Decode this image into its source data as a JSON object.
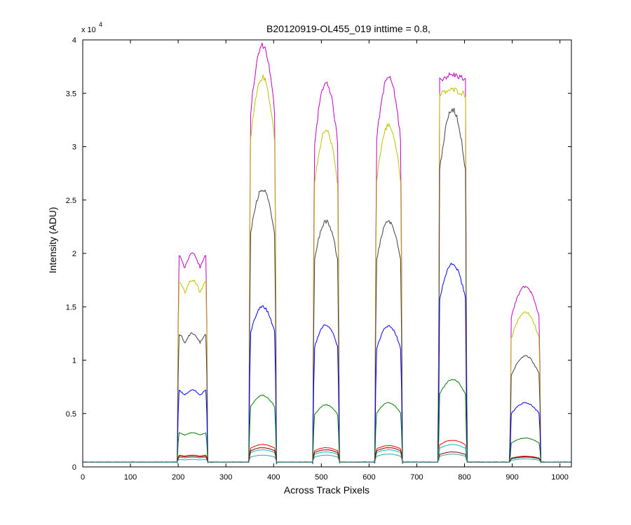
{
  "chart_data": {
    "type": "line",
    "title": "B20120919-OL455_019 inttime = 0.8,",
    "xlabel": "Across Track Pixels",
    "ylabel": "Intensity (ADU)",
    "xlim": [
      0,
      1024
    ],
    "ylim": [
      0,
      40000
    ],
    "y_multiplier_base": "x 10",
    "y_multiplier_exponent": "4",
    "xticks": [
      0,
      100,
      200,
      300,
      400,
      500,
      600,
      700,
      800,
      900,
      1000
    ],
    "xtick_labels": [
      "0",
      "100",
      "200",
      "300",
      "400",
      "500",
      "600",
      "700",
      "800",
      "900",
      "1000"
    ],
    "yticks": [
      0,
      5000,
      10000,
      15000,
      20000,
      25000,
      30000,
      35000,
      40000
    ],
    "ytick_labels": [
      "0",
      "0.5",
      "1",
      "1.5",
      "2",
      "2.5",
      "3",
      "3.5",
      "4"
    ],
    "grid": false,
    "baseline": 450,
    "blocks": [
      {
        "start": 198,
        "end": 262
      },
      {
        "start": 348,
        "end": 406
      },
      {
        "start": 482,
        "end": 538
      },
      {
        "start": 612,
        "end": 670
      },
      {
        "start": 745,
        "end": 805
      },
      {
        "start": 895,
        "end": 960
      }
    ],
    "series": [
      {
        "color": "#bf00bf",
        "values": [
          20000,
          39500,
          36000,
          36500,
          36700,
          16900
        ]
      },
      {
        "color": "#bfbf00",
        "values": [
          17500,
          36500,
          31500,
          32000,
          35300,
          14500
        ]
      },
      {
        "color": "#404040",
        "values": [
          12500,
          26000,
          23000,
          23000,
          33500,
          10400
        ]
      },
      {
        "color": "#0000ff",
        "values": [
          7200,
          15000,
          13300,
          13200,
          19000,
          6000
        ]
      },
      {
        "color": "#007f00",
        "values": [
          3200,
          6700,
          5800,
          6000,
          8200,
          2700
        ]
      },
      {
        "color": "#ff0000",
        "values": [
          1100,
          2100,
          1800,
          2000,
          2500,
          1000
        ]
      },
      {
        "color": "#00bfbf",
        "values": [
          900,
          1600,
          1400,
          1600,
          2100,
          900
        ]
      },
      {
        "color": "#7f0000",
        "values": [
          1000,
          1800,
          1600,
          1800,
          1400,
          950
        ]
      },
      {
        "color": "#40a0a0",
        "values": [
          700,
          1100,
          1100,
          1200,
          1200,
          750
        ]
      }
    ]
  }
}
